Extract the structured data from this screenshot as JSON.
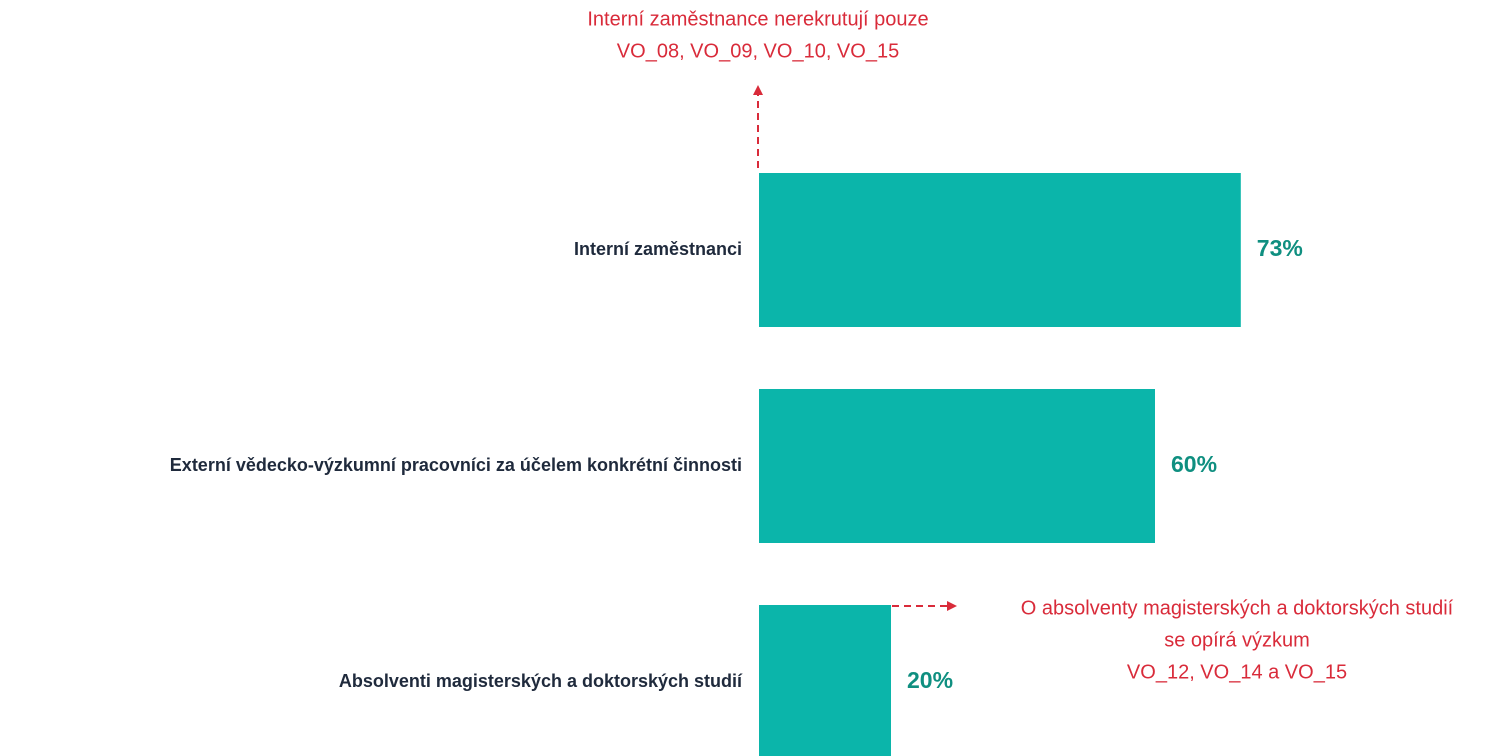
{
  "chart_data": {
    "type": "bar",
    "orientation": "horizontal",
    "categories": [
      "Interní zaměstnanci",
      "Externí vědecko-výzkumní pracovníci za účelem konkrétní činnosti",
      "Absolventi magisterských a doktorských studií"
    ],
    "values": [
      73,
      60,
      20
    ],
    "value_labels": [
      "73%",
      "60%",
      "20%"
    ],
    "color": "#0bb5aa",
    "annotations": [
      {
        "lines": [
          "Interní zaměstnance nerekrutují pouze",
          "VO_08, VO_09, VO_10, VO_15"
        ]
      },
      {
        "lines": [
          "O absolventy magisterských a doktorských studií",
          "se opírá výzkum",
          "VO_12, VO_14 a VO_15"
        ]
      }
    ]
  }
}
